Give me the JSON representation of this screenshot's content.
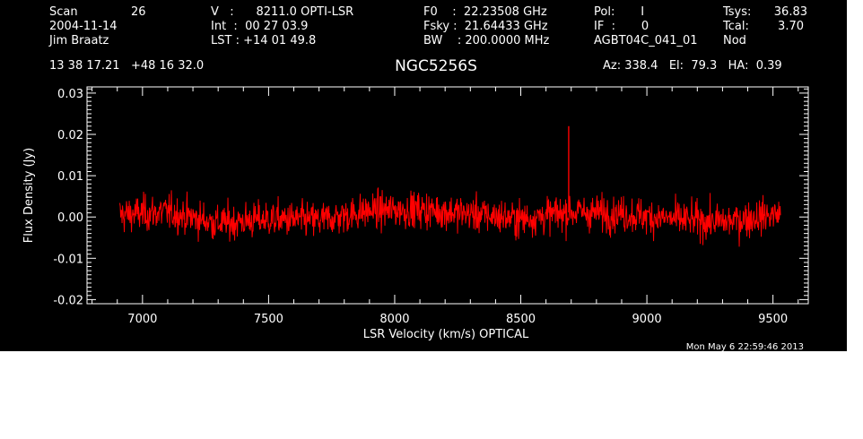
{
  "header": {
    "scan_label": "Scan",
    "scan_number": "26",
    "date": "2004-11-14",
    "observer": "Jim Braatz",
    "velocity": "V   :      8211.0 OPTI-LSR",
    "integration": "Int  :  00 27 03.9",
    "lst": "LST : +14 01 49.8",
    "f0": "F0    :  22.23508 GHz",
    "fsky": "Fsky :  21.64433 GHz",
    "bw": "BW    : 200.0000 MHz",
    "pol": "Pol:       I",
    "if": "IF  :       0",
    "project": "AGBT04C_041_01",
    "tsys_label": "Tsys:",
    "tsys_value": "36.83",
    "tcal_label": "Tcal:",
    "tcal_value": "3.70",
    "procedure": "Nod",
    "coordinates": "13 38 17.21   +48 16 32.0",
    "pointing": "Az: 338.4   El:  79.3   HA:  0.39"
  },
  "footer": {
    "timestamp": "Mon May  6 22:59:46 2013"
  },
  "colors": {
    "background": "#000000",
    "axes": "#ffffff",
    "trace": "#ff0000"
  },
  "chart_data": {
    "type": "line",
    "title": "NGC5256S",
    "xlabel": "LSR Velocity (km/s) OPTICAL",
    "ylabel": "Flux Density (Jy)",
    "xlim": [
      6780,
      9640
    ],
    "ylim": [
      -0.021,
      0.0315
    ],
    "x_ticks": [
      7000,
      7500,
      8000,
      8500,
      9000,
      9500
    ],
    "y_ticks": [
      -0.02,
      -0.01,
      0.0,
      0.01,
      0.02,
      0.03
    ],
    "x_tick_labels": [
      "7000",
      "7500",
      "8000",
      "8500",
      "9000",
      "9500"
    ],
    "y_tick_labels": [
      "-0.02",
      "-0.01",
      "0.00",
      "0.01",
      "0.02",
      "0.03"
    ],
    "grid": false,
    "series": [
      {
        "name": "",
        "x_range": [
          6910,
          9530
        ],
        "noise_rms_jy": 0.0035,
        "baseline_jy": [
          [
            6910,
            0.0005
          ],
          [
            7100,
            0.0012
          ],
          [
            7300,
            -0.0015
          ],
          [
            7500,
            -0.0005
          ],
          [
            7700,
            -0.0008
          ],
          [
            7900,
            0.0015
          ],
          [
            8100,
            0.0018
          ],
          [
            8300,
            0.0008
          ],
          [
            8500,
            -0.0005
          ],
          [
            8700,
            0.0012
          ],
          [
            8900,
            0.0008
          ],
          [
            9100,
            -0.0005
          ],
          [
            9300,
            -0.0012
          ],
          [
            9530,
            0.0008
          ]
        ],
        "peaks": [
          {
            "x": 8690,
            "y": 0.022
          }
        ]
      }
    ]
  }
}
